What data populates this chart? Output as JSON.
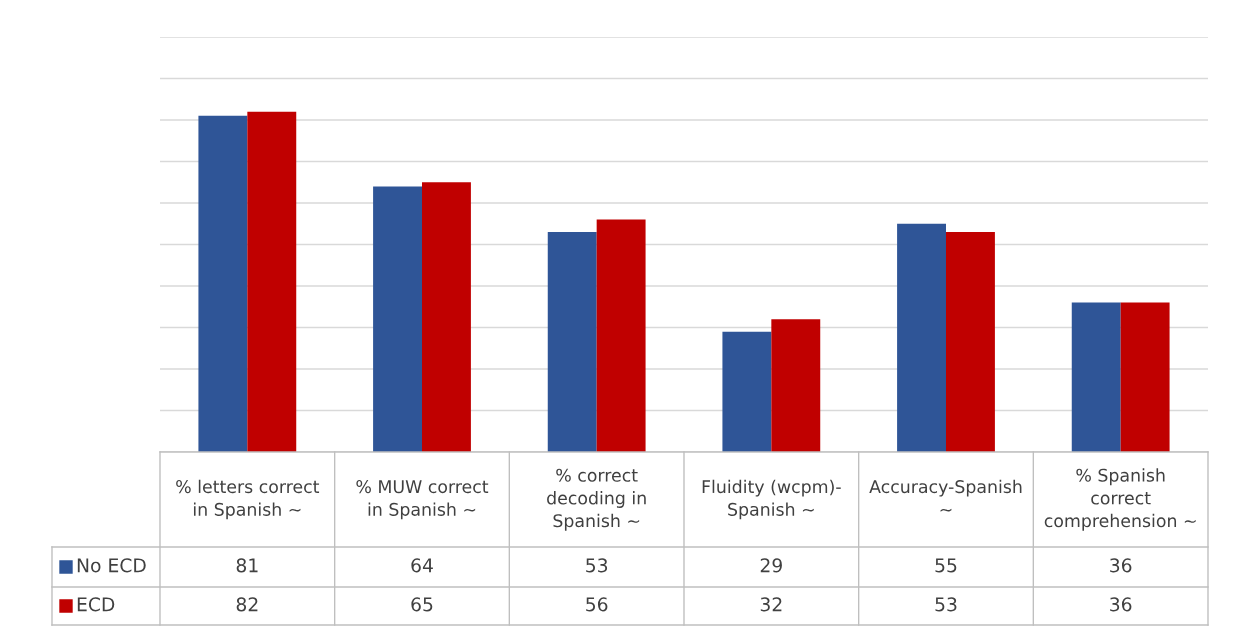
{
  "chart_data": {
    "type": "bar",
    "categories": [
      "% letters correct\nin Spanish ~",
      "% MUW correct\nin Spanish ~",
      "% correct\ndecoding in\nSpanish ~",
      "Fluidity (wcpm)-\nSpanish ~",
      "Accuracy-Spanish\n~",
      "% Spanish\ncorrect\ncomprehension ~"
    ],
    "series": [
      {
        "name": "No ECD",
        "color": "#2f5597",
        "values": [
          81,
          64,
          53,
          29,
          55,
          36
        ]
      },
      {
        "name": "ECD",
        "color": "#c00000",
        "values": [
          82,
          65,
          56,
          32,
          53,
          36
        ]
      }
    ],
    "ylim": [
      0,
      100
    ],
    "yticks": [
      {
        "value": 0,
        "label": null
      },
      {
        "value": 10,
        "label": null
      },
      {
        "value": 20,
        "label": null
      },
      {
        "value": 30,
        "label": null
      },
      {
        "value": 40,
        "label": null
      },
      {
        "value": 50,
        "label": null
      },
      {
        "value": 60,
        "label": null
      },
      {
        "value": 70,
        "label": null
      },
      {
        "value": 80,
        "label": null
      },
      {
        "value": 90,
        "label": null
      },
      {
        "value": 100,
        "label": null
      }
    ],
    "grid": "y",
    "data_labels": true,
    "tick_labels": "x",
    "legend": "bottom left"
  }
}
